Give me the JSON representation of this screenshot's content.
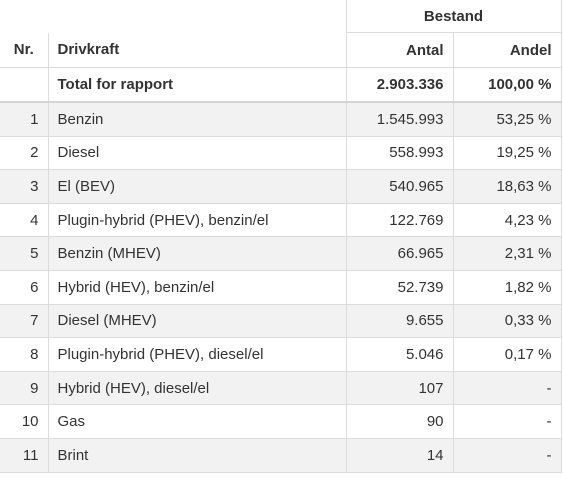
{
  "header": {
    "group": "Bestand",
    "columns": [
      "Nr.",
      "Drivkraft",
      "Antal",
      "Andel"
    ]
  },
  "total": [
    "Total for rapport",
    "2.903.336",
    "100,00 %"
  ],
  "rows": [
    [
      "1",
      "Benzin",
      "1.545.993",
      "53,25 %"
    ],
    [
      "2",
      "Diesel",
      "558.993",
      "19,25 %"
    ],
    [
      "3",
      "El (BEV)",
      "540.965",
      "18,63 %"
    ],
    [
      "4",
      "Plugin-hybrid (PHEV), benzin/el",
      "122.769",
      "4,23 %"
    ],
    [
      "5",
      "Benzin (MHEV)",
      "66.965",
      "2,31 %"
    ],
    [
      "6",
      "Hybrid (HEV), benzin/el",
      "52.739",
      "1,82 %"
    ],
    [
      "7",
      "Diesel (MHEV)",
      "9.655",
      "0,33 %"
    ],
    [
      "8",
      "Plugin-hybrid (PHEV), diesel/el",
      "5.046",
      "0,17 %"
    ],
    [
      "9",
      "Hybrid (HEV), diesel/el",
      "107",
      "-"
    ],
    [
      "10",
      "Gas",
      "90",
      "-"
    ],
    [
      "11",
      "Brint",
      "14",
      "-"
    ]
  ]
}
